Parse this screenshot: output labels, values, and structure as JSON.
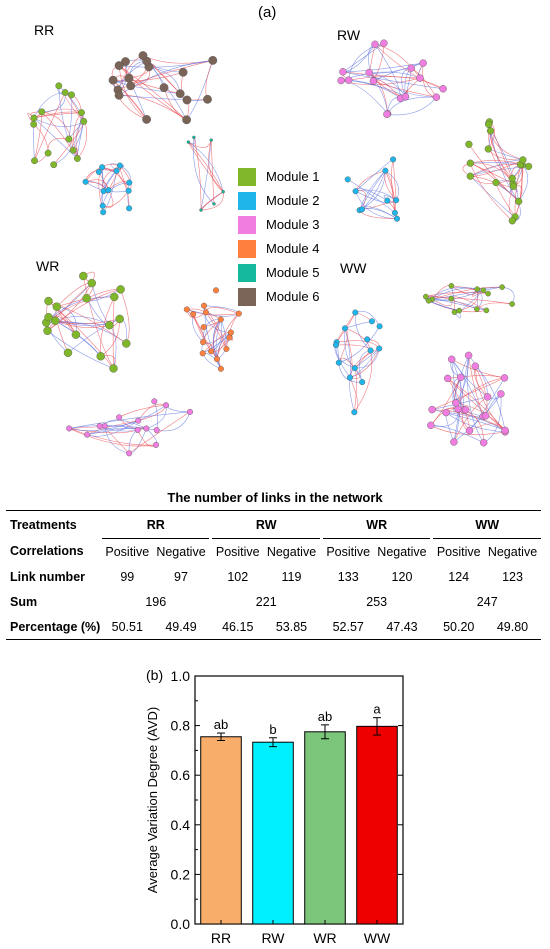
{
  "figure": {
    "panel_a_label": "(a)",
    "panel_b_label": "(b)",
    "networks": [
      {
        "label": "RR"
      },
      {
        "label": "RW"
      },
      {
        "label": "WR"
      },
      {
        "label": "WW"
      }
    ],
    "legend": [
      {
        "label": "Module 1",
        "color": "#7fb62a"
      },
      {
        "label": "Module 2",
        "color": "#1fb4ea"
      },
      {
        "label": "Module 3",
        "color": "#f07ee0"
      },
      {
        "label": "Module 4",
        "color": "#ff7f3e"
      },
      {
        "label": "Module 5",
        "color": "#14b89a"
      },
      {
        "label": "Module 6",
        "color": "#7a6458"
      }
    ],
    "edge_colors": {
      "positive": "#e8434b",
      "negative": "#5a6fe0"
    }
  },
  "table": {
    "title": "The number of links in the network",
    "treatments_label": "Treatments",
    "treatments": [
      "RR",
      "RW",
      "WR",
      "WW"
    ],
    "correlations_label": "Correlations",
    "positive_label": "Positive",
    "negative_label": "Negative",
    "link_number_label": "Link number",
    "link_number": [
      [
        "99",
        "97"
      ],
      [
        "102",
        "119"
      ],
      [
        "133",
        "120"
      ],
      [
        "124",
        "123"
      ]
    ],
    "sum_label": "Sum",
    "sum": [
      "196",
      "221",
      "253",
      "247"
    ],
    "percentage_label": "Percentage (%)",
    "percentage": [
      [
        "50.51",
        "49.49"
      ],
      [
        "46.15",
        "53.85"
      ],
      [
        "52.57",
        "47.43"
      ],
      [
        "50.20",
        "49.80"
      ]
    ]
  },
  "chart_data": {
    "type": "bar",
    "categories": [
      "RR",
      "RW",
      "WR",
      "WW"
    ],
    "values": [
      0.755,
      0.733,
      0.775,
      0.797
    ],
    "errors": [
      0.015,
      0.018,
      0.028,
      0.035
    ],
    "letters": [
      "ab",
      "b",
      "ab",
      "a"
    ],
    "colors": [
      "#f8ae6a",
      "#00f0ff",
      "#7cc67c",
      "#ee0000"
    ],
    "ylabel": "Average Variation Degree (AVD)",
    "xlabel": "",
    "ylim": [
      0.0,
      1.0
    ],
    "yticks": [
      "0.0",
      "0.2",
      "0.4",
      "0.6",
      "0.8",
      "1.0"
    ]
  }
}
